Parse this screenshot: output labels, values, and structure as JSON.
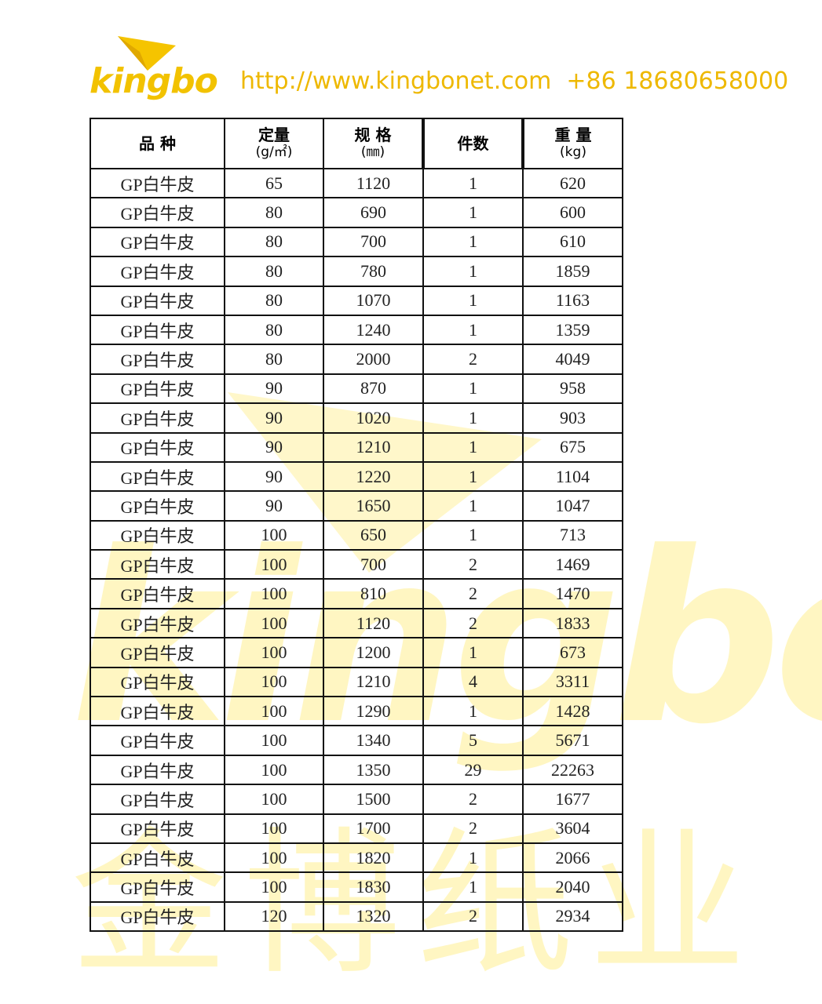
{
  "header": {
    "logo": "kingbo",
    "contact": "http://www.kingbonet.com  +86 18680658000"
  },
  "watermark": {
    "brand": "kingbo",
    "company": "金博纸业"
  },
  "table": {
    "header": [
      {
        "title": "品 种"
      },
      {
        "title": "定量",
        "unit": "(g/㎡)"
      },
      {
        "title": "规 格",
        "unit": "(㎜)"
      },
      {
        "title": "件数"
      },
      {
        "title": "重 量",
        "unit": "(kg)"
      }
    ],
    "rows": [
      [
        "GP白牛皮",
        65,
        1120,
        1,
        620
      ],
      [
        "GP白牛皮",
        80,
        690,
        1,
        600
      ],
      [
        "GP白牛皮",
        80,
        700,
        1,
        610
      ],
      [
        "GP白牛皮",
        80,
        780,
        1,
        1859
      ],
      [
        "GP白牛皮",
        80,
        1070,
        1,
        1163
      ],
      [
        "GP白牛皮",
        80,
        1240,
        1,
        1359
      ],
      [
        "GP白牛皮",
        80,
        2000,
        2,
        4049
      ],
      [
        "GP白牛皮",
        90,
        870,
        1,
        958
      ],
      [
        "GP白牛皮",
        90,
        1020,
        1,
        903
      ],
      [
        "GP白牛皮",
        90,
        1210,
        1,
        675
      ],
      [
        "GP白牛皮",
        90,
        1220,
        1,
        1104
      ],
      [
        "GP白牛皮",
        90,
        1650,
        1,
        1047
      ],
      [
        "GP白牛皮",
        100,
        650,
        1,
        713
      ],
      [
        "GP白牛皮",
        100,
        700,
        2,
        1469
      ],
      [
        "GP白牛皮",
        100,
        810,
        2,
        1470
      ],
      [
        "GP白牛皮",
        100,
        1120,
        2,
        1833
      ],
      [
        "GP白牛皮",
        100,
        1200,
        1,
        673
      ],
      [
        "GP白牛皮",
        100,
        1210,
        4,
        3311
      ],
      [
        "GP白牛皮",
        100,
        1290,
        1,
        1428
      ],
      [
        "GP白牛皮",
        100,
        1340,
        5,
        5671
      ],
      [
        "GP白牛皮",
        100,
        1350,
        29,
        22263
      ],
      [
        "GP白牛皮",
        100,
        1500,
        2,
        1677
      ],
      [
        "GP白牛皮",
        100,
        1700,
        2,
        3604
      ],
      [
        "GP白牛皮",
        100,
        1820,
        1,
        2066
      ],
      [
        "GP白牛皮",
        100,
        1830,
        1,
        2040
      ],
      [
        "GP白牛皮",
        120,
        1320,
        2,
        2934
      ]
    ]
  }
}
